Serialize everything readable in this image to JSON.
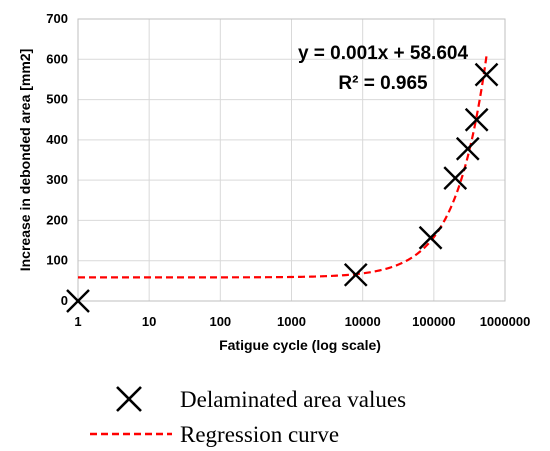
{
  "chart_data": {
    "type": "scatter",
    "xlabel": "Fatigue cycle (log scale)",
    "ylabel": "Increase in debonded area [mm2]",
    "xscale": "log",
    "xlim": [
      1,
      1000000
    ],
    "ylim": [
      0,
      700
    ],
    "grid": true,
    "x_ticks": [
      "1",
      "10",
      "100",
      "1000",
      "10000",
      "100000",
      "1000000"
    ],
    "y_ticks": [
      "0",
      "100",
      "200",
      "300",
      "400",
      "500",
      "600",
      "700"
    ],
    "legend_position": "bottom",
    "legend": {
      "markers_label": "Delaminated area values",
      "curve_label": "Regression curve"
    },
    "annotation": {
      "equation": "y = 0.001x + 58.604",
      "r_squared": "R² = 0.965"
    },
    "series": [
      {
        "kind": "markers",
        "marker": "x",
        "color": "#000000",
        "points": [
          {
            "x": 1,
            "y": 0
          },
          {
            "x": 8000,
            "y": 65
          },
          {
            "x": 90000,
            "y": 157
          },
          {
            "x": 200000,
            "y": 305
          },
          {
            "x": 300000,
            "y": 378
          },
          {
            "x": 400000,
            "y": 450
          },
          {
            "x": 550000,
            "y": 562
          }
        ]
      },
      {
        "kind": "regression",
        "style": "dashed",
        "color": "#ff0000",
        "slope": 0.001,
        "intercept": 58.604,
        "x_range": [
          1,
          550000
        ]
      }
    ]
  }
}
